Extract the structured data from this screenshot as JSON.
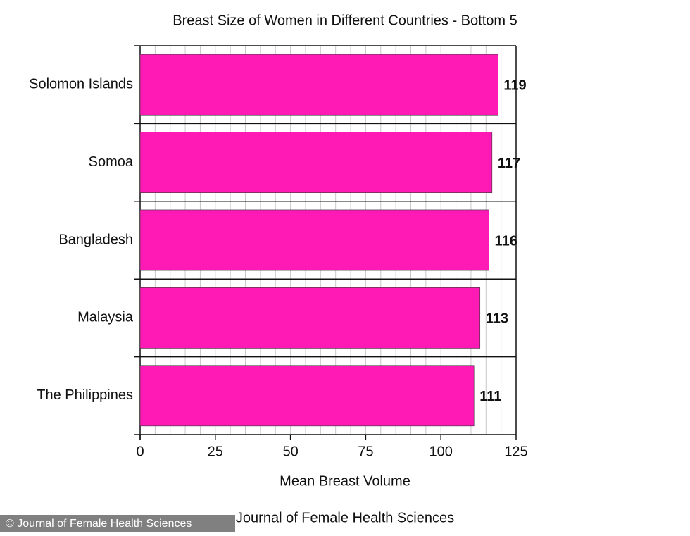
{
  "chart_data": {
    "type": "bar",
    "orientation": "horizontal",
    "title": "Breast Size of Women in Different Countries - Bottom 5",
    "x_label": "Mean Breast Volume",
    "source": "Journal of Female Health Sciences",
    "watermark": "© Journal of Female Health Sciences",
    "categories": [
      "Solomon Islands",
      "Somoa",
      "Bangladesh",
      "Malaysia",
      "The Philippines"
    ],
    "values": [
      119,
      117,
      116,
      113,
      111
    ],
    "color": "#ff1ab6",
    "xlim": [
      0,
      125
    ],
    "xticks": [
      0,
      25,
      50,
      75,
      100,
      125
    ],
    "xminorticks": [
      5,
      10,
      15,
      20,
      30,
      35,
      40,
      45,
      55,
      60,
      65,
      70,
      80,
      85,
      90,
      95,
      105,
      110,
      115,
      120
    ],
    "grid": true
  }
}
